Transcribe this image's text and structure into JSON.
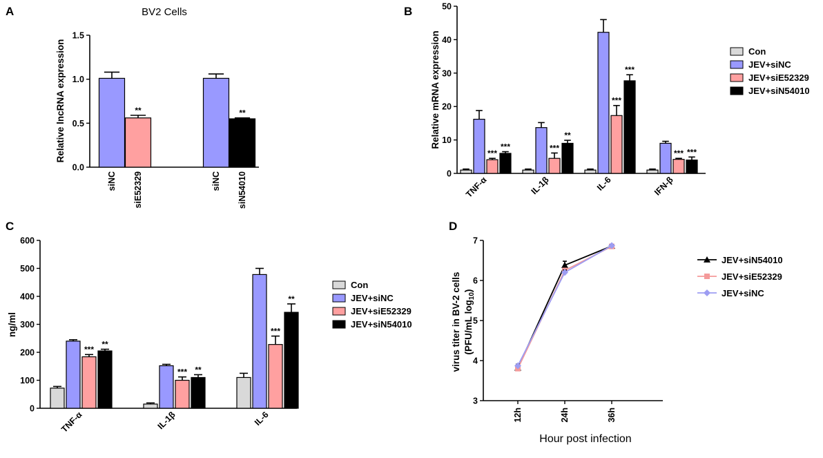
{
  "colors": {
    "Con": "#d9d9d9",
    "siNC": "#9999ff",
    "siE52329": "#ffa0a0",
    "siN54010": "#000000"
  },
  "chart_data": [
    {
      "panel": "A",
      "type": "bar",
      "title": "BV2 Cells",
      "ylabel": "Relative lncRNA expression",
      "xlabel": "",
      "ylim": [
        0,
        1.5
      ],
      "yticks": [
        0.0,
        0.5,
        1.0,
        1.5
      ],
      "ytick_labels": [
        "0.0",
        "0.5",
        "1.0",
        "1.5"
      ],
      "bars": [
        {
          "label": "siNC",
          "color_key": "siNC",
          "value": 1.01,
          "error": 0.07,
          "sig": ""
        },
        {
          "label": "siE52329",
          "color_key": "siE52329",
          "value": 0.56,
          "error": 0.03,
          "sig": "**"
        },
        {
          "label": "siNC",
          "color_key": "siNC",
          "value": 1.01,
          "error": 0.05,
          "sig": ""
        },
        {
          "label": "siN54010",
          "color_key": "siN54010",
          "value": 0.55,
          "error": 0.01,
          "sig": "**"
        }
      ]
    },
    {
      "panel": "B",
      "type": "bar",
      "ylabel": "Relative mRNA expression",
      "xlabel": "",
      "ylim": [
        0,
        50
      ],
      "yticks": [
        0,
        10,
        20,
        30,
        40,
        50
      ],
      "ytick_labels": [
        "0",
        "10",
        "20",
        "30",
        "40",
        "50"
      ],
      "categories": [
        "TNF-α",
        "IL-1β",
        "IL-6",
        "IFN-β"
      ],
      "series": [
        {
          "name": "Con",
          "color_key": "Con",
          "values": [
            1.0,
            1.0,
            1.0,
            1.0
          ],
          "errors": [
            0.3,
            0.3,
            0.3,
            0.3
          ],
          "sig": [
            "",
            "",
            "",
            ""
          ]
        },
        {
          "name": "JEV+siNC",
          "color_key": "siNC",
          "values": [
            16.2,
            13.7,
            42.2,
            9.0
          ],
          "errors": [
            2.6,
            1.5,
            3.8,
            0.6
          ],
          "sig": [
            "",
            "",
            "",
            ""
          ]
        },
        {
          "name": "JEV+siE52329",
          "color_key": "siE52329",
          "values": [
            4.1,
            4.5,
            17.3,
            4.2
          ],
          "errors": [
            0.4,
            1.6,
            3.0,
            0.3
          ],
          "sig": [
            "***",
            "***",
            "***",
            "***"
          ]
        },
        {
          "name": "JEV+siN54010",
          "color_key": "siN54010",
          "values": [
            6.0,
            9.0,
            27.7,
            4.0
          ],
          "errors": [
            0.5,
            0.9,
            1.8,
            0.9
          ],
          "sig": [
            "***",
            "**",
            "***",
            "***"
          ]
        }
      ],
      "legend": [
        "Con",
        "JEV+siNC",
        "JEV+siE52329",
        "JEV+siN54010"
      ]
    },
    {
      "panel": "C",
      "type": "bar",
      "ylabel": "ng/ml",
      "xlabel": "",
      "ylim": [
        0,
        600
      ],
      "yticks": [
        0,
        100,
        200,
        300,
        400,
        500,
        600
      ],
      "ytick_labels": [
        "0",
        "100",
        "200",
        "300",
        "400",
        "500",
        "600"
      ],
      "categories": [
        "TNF-α",
        "IL-1β",
        "IL-6"
      ],
      "series": [
        {
          "name": "Con",
          "color_key": "Con",
          "values": [
            72,
            15,
            110
          ],
          "errors": [
            6,
            4,
            15
          ],
          "sig": [
            "",
            "",
            ""
          ]
        },
        {
          "name": "JEV+siNC",
          "color_key": "siNC",
          "values": [
            240,
            152,
            478
          ],
          "errors": [
            5,
            5,
            22
          ],
          "sig": [
            "",
            "",
            ""
          ]
        },
        {
          "name": "JEV+siE52329",
          "color_key": "siE52329",
          "values": [
            184,
            100,
            228
          ],
          "errors": [
            8,
            12,
            30
          ],
          "sig": [
            "***",
            "***",
            "***"
          ]
        },
        {
          "name": "JEV+siN54010",
          "color_key": "siN54010",
          "values": [
            205,
            110,
            343
          ],
          "errors": [
            6,
            10,
            30
          ],
          "sig": [
            "**",
            "**",
            "**"
          ]
        }
      ],
      "legend": [
        "Con",
        "JEV+siNC",
        "JEV+siE52329",
        "JEV+siN54010"
      ]
    },
    {
      "panel": "D",
      "type": "line",
      "ylabel_line1": "virus titer in BV-2 cells",
      "ylabel_line2_prefix": "(PFU/mL  log",
      "ylabel_line2_sub": "10",
      "ylabel_line2_suffix": ")",
      "xlabel": "Hour post infection",
      "ylim": [
        3,
        7
      ],
      "yticks": [
        3,
        4,
        5,
        6,
        7
      ],
      "ytick_labels": [
        "3",
        "4",
        "5",
        "6",
        "7"
      ],
      "x": [
        "12h",
        "24h",
        "36h"
      ],
      "series": [
        {
          "name": "JEV+siN54010",
          "color": "#000000",
          "marker": "triangle",
          "values": [
            3.82,
            6.38,
            6.86
          ],
          "errors": [
            0.05,
            0.1,
            0.03
          ]
        },
        {
          "name": "JEV+siE52329",
          "color": "#f49a9a",
          "marker": "square",
          "values": [
            3.8,
            6.25,
            6.85
          ],
          "errors": [
            0.05,
            0.08,
            0.03
          ]
        },
        {
          "name": "JEV+siNC",
          "color": "#9d9df2",
          "marker": "diamond",
          "values": [
            3.87,
            6.2,
            6.87
          ],
          "errors": [
            0.04,
            0.06,
            0.03
          ]
        }
      ],
      "legend": [
        "JEV+siN54010",
        "JEV+siE52329",
        "JEV+siNC"
      ]
    }
  ]
}
